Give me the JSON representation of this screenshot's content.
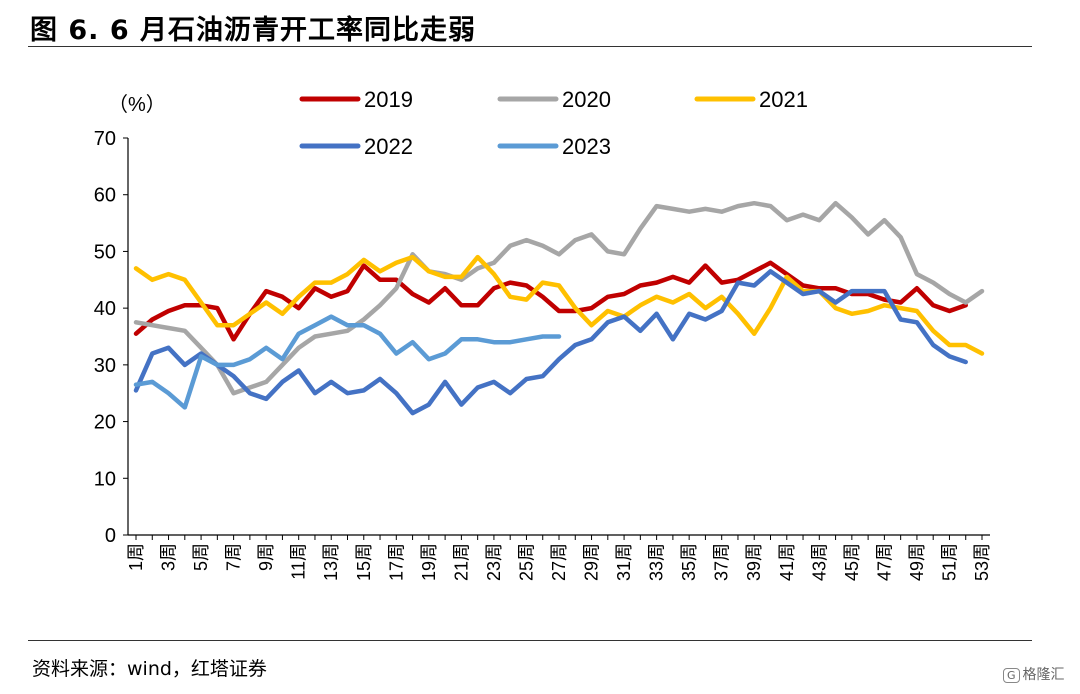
{
  "title": "图 6. 6 月石油沥青开工率同比走弱",
  "source": "资料来源：wind，红塔证券",
  "watermark": "格隆汇",
  "chart_data": {
    "type": "line",
    "ylabel": "（%）",
    "ylim": [
      0,
      70
    ],
    "yticks": [
      0,
      10,
      20,
      30,
      40,
      50,
      60,
      70
    ],
    "x": [
      1,
      2,
      3,
      4,
      5,
      6,
      7,
      8,
      9,
      10,
      11,
      12,
      13,
      14,
      15,
      16,
      17,
      18,
      19,
      20,
      21,
      22,
      23,
      24,
      25,
      26,
      27,
      28,
      29,
      30,
      31,
      32,
      33,
      34,
      35,
      36,
      37,
      38,
      39,
      40,
      41,
      42,
      43,
      44,
      45,
      46,
      47,
      48,
      49,
      50,
      51,
      52,
      53
    ],
    "xtick_labels": [
      "1周",
      "3周",
      "5周",
      "7周",
      "9周",
      "11周",
      "13周",
      "15周",
      "17周",
      "19周",
      "21周",
      "23周",
      "25周",
      "27周",
      "29周",
      "31周",
      "33周",
      "35周",
      "37周",
      "39周",
      "41周",
      "43周",
      "45周",
      "47周",
      "49周",
      "51周",
      "53周"
    ],
    "legend_position": "top",
    "series": [
      {
        "name": "2019",
        "color": "#c00000",
        "values": [
          35.5,
          38,
          39.5,
          40.5,
          40.5,
          40,
          34.5,
          39,
          43,
          42,
          40,
          43.5,
          42,
          43,
          47.5,
          45,
          45,
          42.5,
          41,
          43.5,
          40.5,
          40.5,
          43.5,
          44.5,
          44,
          42,
          39.5,
          39.5,
          40,
          42,
          42.5,
          44,
          44.5,
          45.5,
          44.5,
          47.5,
          44.5,
          45,
          46.5,
          48,
          46,
          44,
          43.5,
          43.5,
          42.5,
          42.5,
          41.5,
          41,
          43.5,
          40.5,
          39.5,
          40.5,
          null
        ]
      },
      {
        "name": "2020",
        "color": "#a6a6a6",
        "values": [
          37.5,
          37,
          36.5,
          36,
          33,
          30,
          25,
          26,
          27,
          30,
          33,
          35,
          35.5,
          36,
          38,
          40.5,
          43.5,
          49.5,
          46.5,
          46,
          45,
          47,
          48,
          51,
          52,
          51,
          49.5,
          52,
          53,
          50,
          49.5,
          54,
          58,
          57.5,
          57,
          57.5,
          57,
          58,
          58.5,
          58,
          55.5,
          56.5,
          55.5,
          58.5,
          56,
          53,
          55.5,
          52.5,
          46,
          44.5,
          42.5,
          41,
          43
        ]
      },
      {
        "name": "2021",
        "color": "#ffc000",
        "values": [
          47,
          45,
          46,
          45,
          41,
          37,
          37,
          39,
          41,
          39,
          42,
          44.5,
          44.5,
          46,
          48.5,
          46.5,
          48,
          49,
          46.5,
          45.5,
          45.5,
          49,
          46,
          42,
          41.5,
          44.5,
          44,
          40,
          37,
          39.5,
          38.5,
          40.5,
          42,
          41,
          42.5,
          40,
          42,
          39,
          35.5,
          40,
          45.5,
          43,
          43,
          40,
          39,
          39.5,
          40.5,
          40,
          39.5,
          36,
          33.5,
          33.5,
          32
        ]
      },
      {
        "name": "2022",
        "color": "#4472c4",
        "values": [
          25.5,
          32,
          33,
          30,
          32,
          30,
          28,
          25,
          24,
          27,
          29,
          25,
          27,
          25,
          25.5,
          27.5,
          25,
          21.5,
          23,
          27,
          23,
          26,
          27,
          25,
          27.5,
          28,
          31,
          33.5,
          34.5,
          37.5,
          38.5,
          36,
          39,
          34.5,
          39,
          38,
          39.5,
          44.5,
          44,
          46.5,
          44.5,
          42.5,
          43,
          41,
          43,
          43,
          43,
          38,
          37.5,
          33.5,
          31.5,
          30.5,
          null
        ]
      },
      {
        "name": "2023",
        "color": "#5b9bd5",
        "values": [
          26.5,
          27,
          25,
          22.5,
          31.5,
          30,
          30,
          31,
          33,
          31,
          35.5,
          37,
          38.5,
          37,
          37,
          35.5,
          32,
          34,
          31,
          32,
          34.5,
          34.5,
          34,
          34,
          34.5,
          35,
          35,
          null,
          null,
          null,
          null,
          null,
          null,
          null,
          null,
          null,
          null,
          null,
          null,
          null,
          null,
          null,
          null,
          null,
          null,
          null,
          null,
          null,
          null,
          null,
          null,
          null,
          null
        ]
      }
    ]
  }
}
